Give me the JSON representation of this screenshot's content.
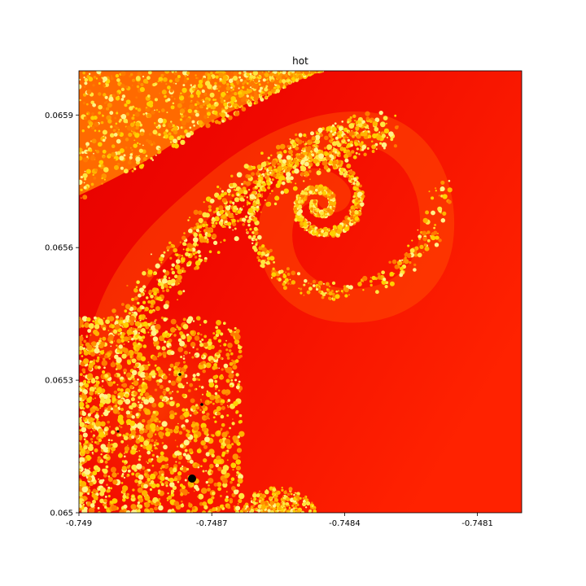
{
  "chart_data": {
    "type": "heatmap",
    "title": "hot",
    "colormap": "hot",
    "subject": "Mandelbrot set zoom (spiral seahorse-valley detail)",
    "xlabel": "",
    "ylabel": "",
    "xlim": [
      -0.749,
      -0.748
    ],
    "ylim": [
      0.065,
      0.066
    ],
    "x_ticks": [
      {
        "value": -0.749,
        "label": "-0.749"
      },
      {
        "value": -0.7487,
        "label": "-0.7487"
      },
      {
        "value": -0.7484,
        "label": "-0.7484"
      },
      {
        "value": -0.7481,
        "label": "-0.7481"
      }
    ],
    "y_ticks": [
      {
        "value": 0.065,
        "label": "0.065"
      },
      {
        "value": 0.0653,
        "label": "0.0653"
      },
      {
        "value": 0.0656,
        "label": "0.0656"
      },
      {
        "value": 0.0659,
        "label": "0.0659"
      }
    ],
    "grid": false,
    "legend": "none"
  }
}
